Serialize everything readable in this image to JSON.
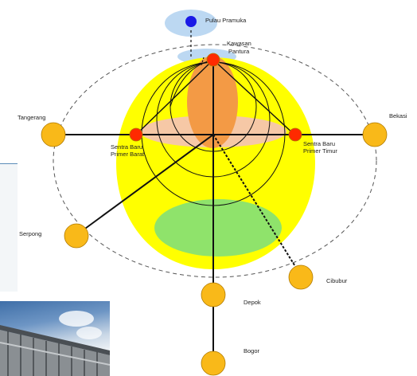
{
  "nodes": {
    "pulau_pramuka": "Pulau Pramuka",
    "kawasan_pantura": [
      "Kawasan",
      "Pantura"
    ],
    "tangerang": "Tangerang",
    "bekasi": "Bekasi",
    "sentra_barat": [
      "Sentra Baru",
      "Primer Barat"
    ],
    "sentra_timur": [
      "Sentra Baru",
      "Primer Timur"
    ],
    "serpong": "Serpong",
    "cibubur": "Cibubur",
    "depok": "Depok",
    "bogor": "Bogor"
  },
  "colors": {
    "yellow_zone": "#ffff00",
    "orange_zone": "#f39a45",
    "peach_zone": "#f6c8a6",
    "green_zone": "#8fe36b",
    "blue_zone": "#bcd8f2",
    "hub_red": "#ff2a00",
    "city_gold": "#f9b919",
    "island_blue": "#1a1ae6",
    "line": "#111111"
  }
}
